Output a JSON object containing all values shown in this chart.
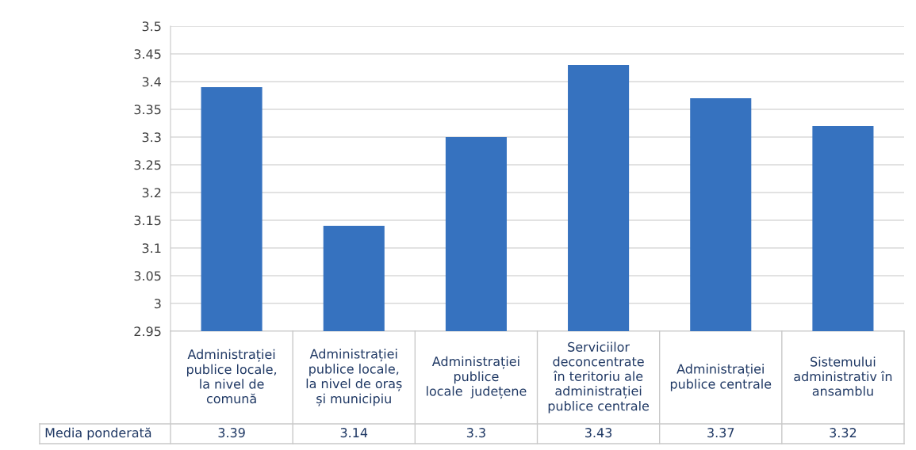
{
  "chart_data": {
    "type": "bar",
    "categories": [
      "Administrației\npublice locale,\nla nivel de\ncomună",
      "Administrației\npublice locale,\nla nivel de oraș\nși municipiu",
      "Administrației\npublice\nlocale  județene",
      "Serviciilor\ndeconcentrate\nîn teritoriu ale\nadministrației\npublice centrale",
      "Administrației\npublice centrale",
      "Sistemului\nadministrativ în\nansamblu"
    ],
    "series": [
      {
        "name": "Media ponderată",
        "color": "#3672bf",
        "values": [
          3.39,
          3.14,
          3.3,
          3.43,
          3.37,
          3.32
        ]
      }
    ],
    "ylim": [
      2.95,
      3.5
    ],
    "yticks": [
      2.95,
      3,
      3.05,
      3.1,
      3.15,
      3.2,
      3.25,
      3.3,
      3.35,
      3.4,
      3.45,
      3.5
    ],
    "grid": "y",
    "data_labels": true
  }
}
